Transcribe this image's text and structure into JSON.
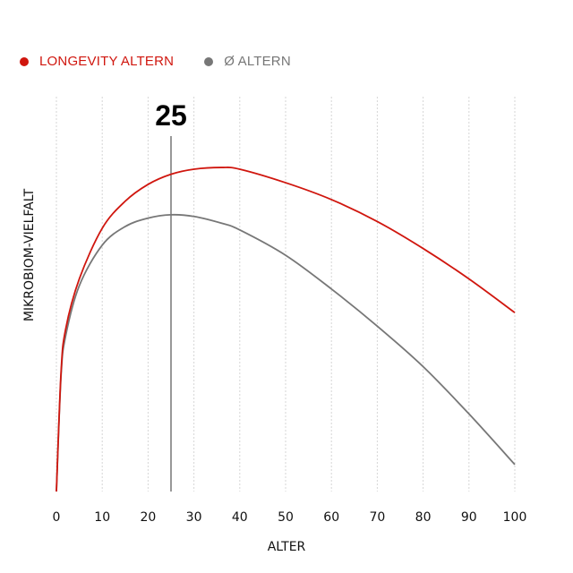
{
  "legend": [
    {
      "label": "LONGEVITY ALTERN",
      "color": "#d0160e"
    },
    {
      "label": "Ø ALTERN",
      "color": "#777777"
    }
  ],
  "marker": {
    "label": "25",
    "x": 25
  },
  "chart_data": {
    "type": "line",
    "title": "",
    "xlabel": "ALTER",
    "ylabel": "MIKROBIOM-VIELFALT",
    "xlim": [
      0,
      100
    ],
    "ylim": [
      0,
      100
    ],
    "xticks": [
      0,
      10,
      20,
      30,
      40,
      50,
      60,
      70,
      80,
      90,
      100
    ],
    "grid": "vertical dotted",
    "legend_position": "top-left",
    "annotations": [
      {
        "x": 25,
        "label": "25",
        "type": "vertical-line"
      }
    ],
    "x": [
      0,
      1,
      2,
      5,
      10,
      15,
      20,
      25,
      30,
      36,
      40,
      50,
      60,
      70,
      80,
      90,
      100
    ],
    "series": [
      {
        "name": "LONGEVITY ALTERN",
        "color": "#d0160e",
        "values": [
          0,
          35,
          48,
          63,
          78,
          86,
          91,
          94,
          95.5,
          96,
          95.5,
          91.5,
          86.5,
          80,
          72,
          63,
          53
        ]
      },
      {
        "name": "Ø ALTERN",
        "color": "#777777",
        "values": [
          0,
          34,
          46,
          61,
          73,
          78.5,
          81,
          82,
          81.5,
          79.5,
          77.5,
          70,
          60,
          49,
          37,
          23,
          8
        ]
      }
    ]
  }
}
